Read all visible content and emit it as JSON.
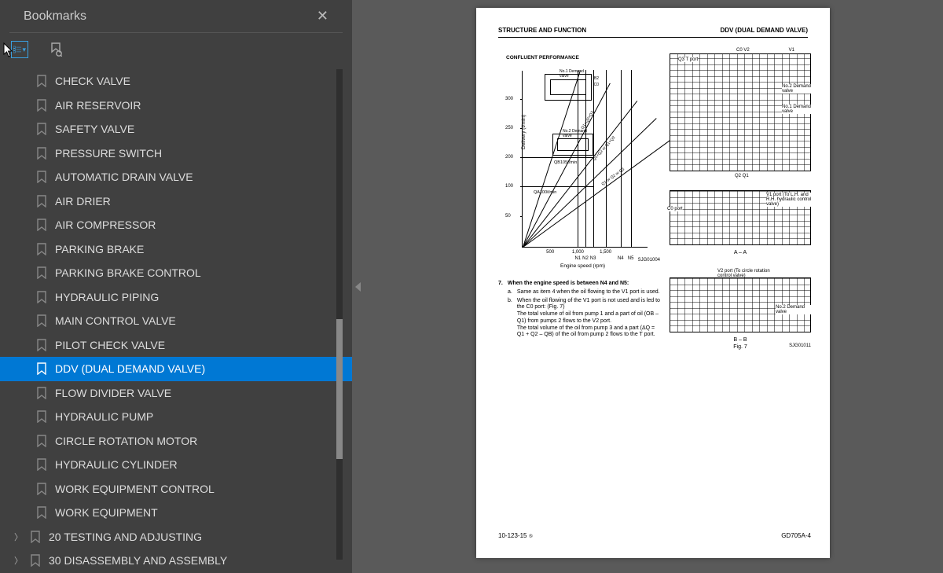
{
  "sidebar": {
    "title": "Bookmarks",
    "items": [
      {
        "label": "CHECK VALVE",
        "level": 1
      },
      {
        "label": "AIR RESERVOIR",
        "level": 1
      },
      {
        "label": "SAFETY VALVE",
        "level": 1
      },
      {
        "label": "PRESSURE SWITCH",
        "level": 1
      },
      {
        "label": "AUTOMATIC DRAIN VALVE",
        "level": 1
      },
      {
        "label": "AIR DRIER",
        "level": 1
      },
      {
        "label": "AIR COMPRESSOR",
        "level": 1
      },
      {
        "label": "PARKING BRAKE",
        "level": 1
      },
      {
        "label": "PARKING BRAKE CONTROL",
        "level": 1
      },
      {
        "label": "HYDRAULIC PIPING",
        "level": 1
      },
      {
        "label": "MAIN CONTROL VALVE",
        "level": 1
      },
      {
        "label": "PILOT CHECK VALVE",
        "level": 1
      },
      {
        "label": "DDV (DUAL DEMAND VALVE)",
        "level": 1,
        "selected": true
      },
      {
        "label": "FLOW DIVIDER VALVE",
        "level": 1
      },
      {
        "label": "HYDRAULIC PUMP",
        "level": 1
      },
      {
        "label": "CIRCLE ROTATION MOTOR",
        "level": 1
      },
      {
        "label": "HYDRAULIC CYLINDER",
        "level": 1
      },
      {
        "label": "WORK EQUIPMENT CONTROL",
        "level": 1
      },
      {
        "label": "WORK EQUIPMENT",
        "level": 1
      },
      {
        "label": "20 TESTING AND ADJUSTING",
        "level": 0,
        "expandable": true
      },
      {
        "label": "30 DISASSEMBLY AND ASSEMBLY",
        "level": 0,
        "expandable": true
      }
    ],
    "scrollbar": {
      "thumb_top": 406,
      "thumb_height": 178
    }
  },
  "page": {
    "header_left": "STRUCTURE AND FUNCTION",
    "header_right": "DDV (DUAL DEMAND VALVE)",
    "chart": {
      "title": "CONFLUENT PERFORMANCE",
      "y_ticks": [
        {
          "v": "50",
          "p": 0.82
        },
        {
          "v": "100",
          "p": 0.655
        },
        {
          "v": "200",
          "p": 0.49
        },
        {
          "v": "250",
          "p": 0.325
        },
        {
          "v": "300",
          "p": 0.16
        }
      ],
      "x_ticks": [
        {
          "v": "500",
          "p": 0.22
        },
        {
          "v": "1,000",
          "p": 0.44
        },
        {
          "v": "1,500",
          "p": 0.66
        }
      ],
      "n_labels": [
        "N1",
        "N2",
        "N3",
        "",
        "N4",
        "N5"
      ],
      "x_label": "Engine speed (rpm)",
      "y_label": "Delivery (ℓ/min)",
      "ref": "SJG01004",
      "inset_top": "No.1 Demand valve",
      "inset_mid": "No.2 Demand valve",
      "q_labels": [
        "QB105ℓ/min",
        "QA100ℓ/min"
      ],
      "diag_labels": [
        "Q1+Q2+Q3",
        "Q1+Q2 or Q1+Q3",
        "Q1 or Q2 or Q3"
      ]
    },
    "right_figs": {
      "top_labels": {
        "l1": "C0 V2",
        "l2": "V1",
        "l3": "Q3 T port",
        "l4": "No.2 Demand valve",
        "l5": "No.1 Demand valve",
        "l6": "Q2  Q1"
      },
      "mid_labels": {
        "l1": "C0 port",
        "l2": "V1 port (To L.H. and R.H. hydraulic control valve)",
        "cap": "A – A"
      },
      "bot_labels": {
        "l1": "V2 port (To circle rotation control valve)",
        "l2": "No.2 Demand valve",
        "cap": "B – B",
        "fig": "Fig. 7",
        "ref": "SJG01011"
      }
    },
    "body": {
      "num": "7.",
      "lead": "When the engine speed is between N4 and N5:",
      "a": "Same as item 4 when the oil flowing to the V1 port is used.",
      "b1": "When the oil flowing of the V1 port is not used and is led to the C0 port: (Fig. 7)",
      "b2": "The total volume of oil from pump 1 and a part of oil (OB – Q1) from pumps 2 flows to the V2 port.",
      "b3": "The total volume of the oil from pump 3 and a part (ΔQ = Q1 + Q2 – QB) of the oil from pump 2 flows to the T port."
    },
    "footer_left": "10-123-15",
    "footer_sub": "⑤",
    "footer_right": "GD705A-4"
  }
}
